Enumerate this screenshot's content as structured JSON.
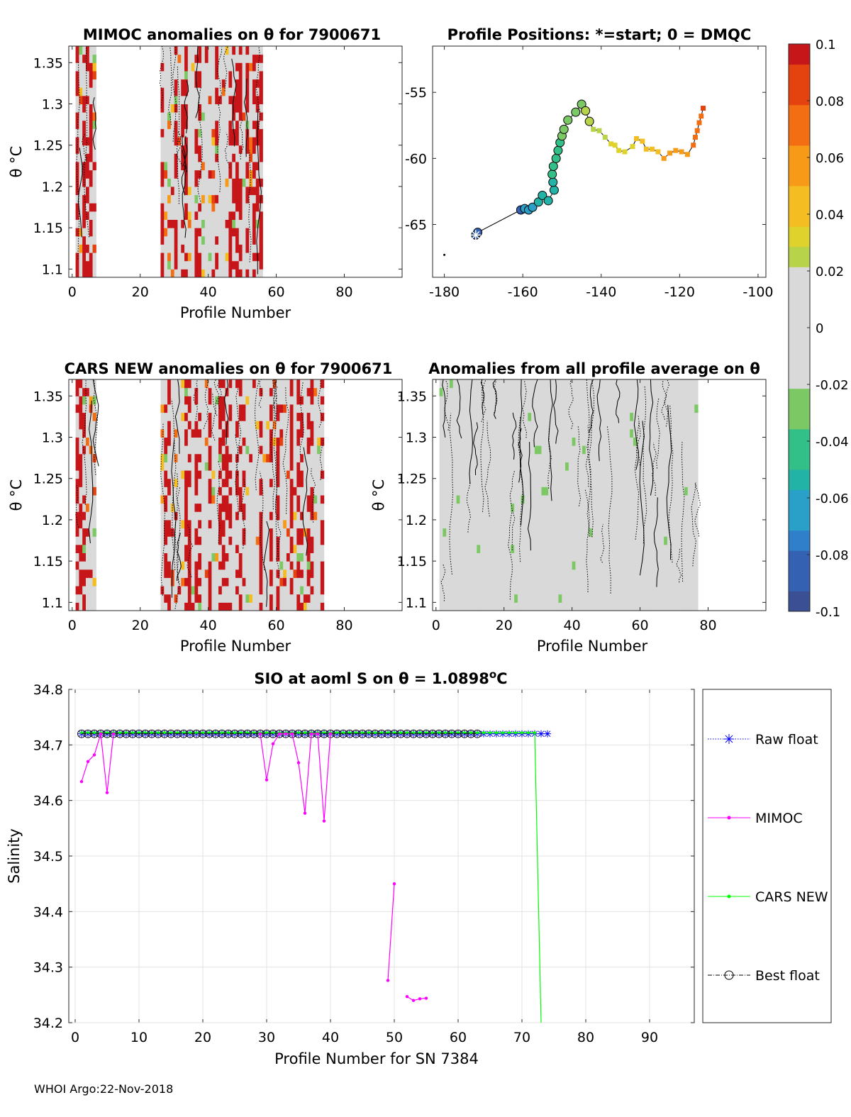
{
  "footer": "WHOI Argo:22-Nov-2018",
  "colorbar": {
    "ticks": [
      "0.1",
      "0.08",
      "0.06",
      "0.04",
      "0.02",
      "0",
      "-0.02",
      "-0.04",
      "-0.06",
      "-0.08",
      "-0.1"
    ],
    "range": [
      -0.1,
      0.1
    ]
  },
  "chart_data": [
    {
      "id": "mimoc",
      "type": "heatmap",
      "title": "MIMOC anomalies on θ  for 7900671",
      "xlabel": "Profile Number",
      "ylabel": "θ °C",
      "xlim": [
        -1,
        97
      ],
      "ylim": [
        1.09,
        1.37
      ],
      "xticks": [
        "0",
        "20",
        "40",
        "60",
        "80"
      ],
      "yticks": [
        "1.1",
        "1.15",
        "1.2",
        "1.25",
        "1.3",
        "1.35"
      ],
      "data_columns": [
        [
          1,
          7
        ],
        [
          26,
          56
        ]
      ]
    },
    {
      "id": "positions",
      "type": "scatter",
      "title": "Profile Positions: *=start; 0 = DMQC",
      "xlabel": "",
      "ylabel": "",
      "xlim": [
        -183,
        -98
      ],
      "ylim": [
        -69,
        -51.5
      ],
      "xticks": [
        "-180",
        "-160",
        "-140",
        "-120",
        "-100"
      ],
      "yticks": [
        "-55",
        "-60",
        "-65"
      ],
      "start_marker": [
        -172,
        -65.8
      ],
      "stray_point": [
        -180,
        -67.3
      ],
      "track_dmqc": [
        [
          -172,
          -65.8
        ],
        [
          -171.5,
          -65.6
        ],
        [
          -160.5,
          -63.9
        ],
        [
          -159.5,
          -63.8
        ],
        [
          -158.5,
          -63.9
        ],
        [
          -157.5,
          -63.7
        ],
        [
          -156,
          -63.3
        ],
        [
          -155,
          -62.8
        ],
        [
          -153.5,
          -63.2
        ],
        [
          -152,
          -62.4
        ],
        [
          -152.3,
          -61.8
        ],
        [
          -152.5,
          -61.2
        ],
        [
          -152.2,
          -60.6
        ],
        [
          -151.5,
          -60.0
        ],
        [
          -151,
          -59.4
        ],
        [
          -150.5,
          -58.8
        ],
        [
          -150,
          -58.3
        ],
        [
          -149.5,
          -57.8
        ],
        [
          -148.5,
          -57.1
        ],
        [
          -146.5,
          -56.5
        ],
        [
          -145,
          -55.9
        ],
        [
          -144,
          -56.4
        ],
        [
          -143,
          -57.2
        ]
      ],
      "track_raw": [
        [
          -142,
          -57.8
        ],
        [
          -140.5,
          -57.9
        ],
        [
          -139,
          -58.4
        ],
        [
          -137.5,
          -58.9
        ],
        [
          -136.5,
          -59.0
        ],
        [
          -135.5,
          -59.4
        ],
        [
          -134,
          -59.5
        ],
        [
          -132,
          -59.1
        ],
        [
          -131,
          -58.5
        ],
        [
          -129.5,
          -58.7
        ],
        [
          -128.5,
          -59.3
        ],
        [
          -127,
          -59.3
        ],
        [
          -125.5,
          -59.5
        ],
        [
          -124,
          -60.0
        ],
        [
          -122.5,
          -59.6
        ],
        [
          -121,
          -59.4
        ],
        [
          -119.5,
          -59.5
        ],
        [
          -118,
          -59.7
        ],
        [
          -116.5,
          -59.0
        ],
        [
          -116,
          -58.4
        ],
        [
          -115.5,
          -57.9
        ],
        [
          -115,
          -57.3
        ],
        [
          -114.5,
          -56.8
        ],
        [
          -114,
          -56.2
        ]
      ]
    },
    {
      "id": "cars",
      "type": "heatmap",
      "title": "CARS NEW anomalies on θ for 7900671",
      "xlabel": "Profile Number",
      "ylabel": "θ °C",
      "xlim": [
        -1,
        97
      ],
      "ylim": [
        1.09,
        1.37
      ],
      "xticks": [
        "0",
        "20",
        "40",
        "60",
        "80"
      ],
      "yticks": [
        "1.1",
        "1.15",
        "1.2",
        "1.25",
        "1.3",
        "1.35"
      ],
      "data_columns": [
        [
          1,
          7
        ],
        [
          26,
          74
        ]
      ]
    },
    {
      "id": "allavg",
      "type": "heatmap",
      "title": "Anomalies from all profile average on θ",
      "xlabel": "Profile Number",
      "ylabel": "θ °C",
      "xlim": [
        -1,
        97
      ],
      "ylim": [
        1.09,
        1.37
      ],
      "xticks": [
        "0",
        "20",
        "40",
        "60",
        "80"
      ],
      "yticks": [
        "1.1",
        "1.15",
        "1.2",
        "1.25",
        "1.3",
        "1.35"
      ],
      "data_columns": [
        [
          1,
          77
        ]
      ]
    },
    {
      "id": "salinity",
      "type": "line",
      "title_prefix": "SIO at aoml S on θ = 1.0898",
      "title_suffix": "C",
      "title_sup": "o",
      "xlabel": "Profile Number for SN 7384",
      "ylabel": "Salinity",
      "xlim": [
        -1,
        97
      ],
      "ylim": [
        34.2,
        34.8
      ],
      "xticks": [
        "0",
        "10",
        "20",
        "30",
        "40",
        "50",
        "60",
        "70",
        "80",
        "90"
      ],
      "yticks": [
        "34.2",
        "34.3",
        "34.4",
        "34.5",
        "34.6",
        "34.7",
        "34.8"
      ],
      "legend": "outside-right",
      "series": [
        {
          "name": "Raw float",
          "color": "#0000ff",
          "marker": "star",
          "x_range": [
            1,
            74
          ],
          "value": 34.72
        },
        {
          "name": "MIMOC",
          "color": "#ff00ff",
          "marker": "dot",
          "segments": [
            [
              [
                1,
                34.634
              ],
              [
                2,
                34.67
              ],
              [
                3,
                34.682
              ],
              [
                4,
                34.72
              ],
              [
                5,
                34.614
              ],
              [
                6,
                34.72
              ]
            ],
            [
              [
                29,
                34.72
              ],
              [
                30,
                34.637
              ],
              [
                31,
                34.702
              ],
              [
                32,
                34.72
              ],
              [
                33,
                34.72
              ],
              [
                34,
                34.72
              ],
              [
                35,
                34.668
              ],
              [
                36,
                34.577
              ],
              [
                37,
                34.72
              ],
              [
                38,
                34.72
              ],
              [
                39,
                34.563
              ],
              [
                40,
                34.72
              ]
            ],
            [
              [
                49,
                34.276
              ],
              [
                50,
                34.45
              ]
            ],
            [
              [
                52,
                34.247
              ],
              [
                53,
                34.24
              ],
              [
                54,
                34.243
              ],
              [
                55,
                34.244
              ]
            ]
          ]
        },
        {
          "name": "CARS NEW",
          "color": "#00ff00",
          "marker": "dot",
          "x_range": [
            1,
            72
          ],
          "value": 34.722,
          "drop": [
            [
              72,
              34.722
            ],
            [
              73,
              34.2
            ]
          ]
        },
        {
          "name": "Best float",
          "color": "#000000",
          "marker": "circle",
          "x_range": [
            1,
            63
          ],
          "value": 34.72
        }
      ]
    }
  ]
}
